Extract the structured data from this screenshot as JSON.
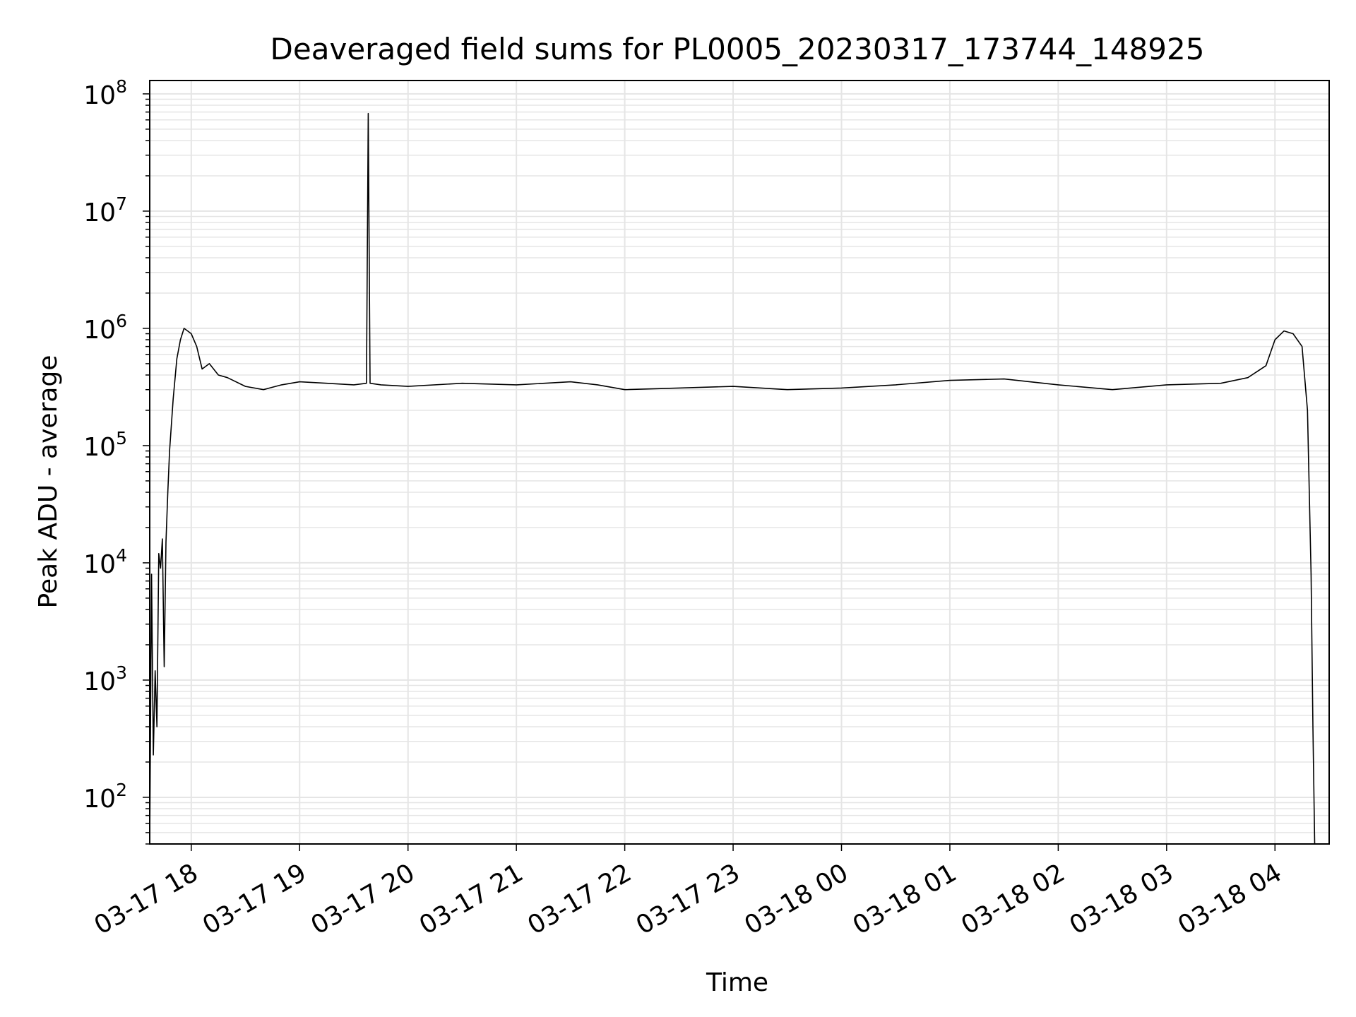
{
  "chart_data": {
    "type": "line",
    "title": "Deaveraged field sums for PL0005_20230317_173744_148925",
    "xlabel": "Time",
    "ylabel": "Peak ADU - average",
    "yscale": "log",
    "ylim": [
      40,
      130000000
    ],
    "xlim": [
      "2023-03-17 17:37",
      "2023-03-18 04:30"
    ],
    "grid": true,
    "line_color": "#000000",
    "grid_color": "#e5e5e5",
    "x_ticks": [
      {
        "t": "2023-03-17 18:00",
        "label": "03-17 18"
      },
      {
        "t": "2023-03-17 19:00",
        "label": "03-17 19"
      },
      {
        "t": "2023-03-17 20:00",
        "label": "03-17 20"
      },
      {
        "t": "2023-03-17 21:00",
        "label": "03-17 21"
      },
      {
        "t": "2023-03-17 22:00",
        "label": "03-17 22"
      },
      {
        "t": "2023-03-17 23:00",
        "label": "03-17 23"
      },
      {
        "t": "2023-03-18 00:00",
        "label": "03-18 00"
      },
      {
        "t": "2023-03-18 01:00",
        "label": "03-18 01"
      },
      {
        "t": "2023-03-18 02:00",
        "label": "03-18 02"
      },
      {
        "t": "2023-03-18 03:00",
        "label": "03-18 03"
      },
      {
        "t": "2023-03-18 04:00",
        "label": "03-18 04"
      }
    ],
    "y_ticks": [
      {
        "value": 100,
        "base": "10",
        "exp": "2"
      },
      {
        "value": 1000,
        "base": "10",
        "exp": "3"
      },
      {
        "value": 10000,
        "base": "10",
        "exp": "4"
      },
      {
        "value": 100000,
        "base": "10",
        "exp": "5"
      },
      {
        "value": 1000000,
        "base": "10",
        "exp": "6"
      },
      {
        "value": 10000000,
        "base": "10",
        "exp": "7"
      },
      {
        "value": 100000000,
        "base": "10",
        "exp": "8"
      }
    ],
    "series": [
      {
        "x": [
          "2023-03-17 17:37",
          "2023-03-17 17:38",
          "2023-03-17 17:39",
          "2023-03-17 17:40",
          "2023-03-17 17:41",
          "2023-03-17 17:42",
          "2023-03-17 17:43",
          "2023-03-17 17:44",
          "2023-03-17 17:45",
          "2023-03-17 17:46",
          "2023-03-17 17:47",
          "2023-03-17 17:48",
          "2023-03-17 17:50",
          "2023-03-17 17:52",
          "2023-03-17 17:54",
          "2023-03-17 17:56",
          "2023-03-17 17:58",
          "2023-03-17 18:00",
          "2023-03-17 18:03",
          "2023-03-17 18:06",
          "2023-03-17 18:10",
          "2023-03-17 18:15",
          "2023-03-17 18:20",
          "2023-03-17 18:30",
          "2023-03-17 18:40",
          "2023-03-17 18:50",
          "2023-03-17 19:00",
          "2023-03-17 19:15",
          "2023-03-17 19:30",
          "2023-03-17 19:37",
          "2023-03-17 19:38",
          "2023-03-17 19:39",
          "2023-03-17 19:45",
          "2023-03-17 20:00",
          "2023-03-17 20:30",
          "2023-03-17 21:00",
          "2023-03-17 21:30",
          "2023-03-17 21:45",
          "2023-03-17 22:00",
          "2023-03-17 22:30",
          "2023-03-17 23:00",
          "2023-03-17 23:30",
          "2023-03-18 00:00",
          "2023-03-18 00:30",
          "2023-03-18 01:00",
          "2023-03-18 01:30",
          "2023-03-18 02:00",
          "2023-03-18 02:30",
          "2023-03-18 03:00",
          "2023-03-18 03:30",
          "2023-03-18 03:45",
          "2023-03-18 03:55",
          "2023-03-18 04:00",
          "2023-03-18 04:05",
          "2023-03-18 04:10",
          "2023-03-18 04:15",
          "2023-03-18 04:18",
          "2023-03-18 04:20",
          "2023-03-18 04:21",
          "2023-03-18 04:22"
        ],
        "y": [
          40,
          8000,
          230,
          1200,
          400,
          12000,
          9000,
          16000,
          1300,
          15000,
          40000,
          90000,
          250000,
          550000,
          800000,
          1000000,
          950000,
          900000,
          700000,
          450000,
          500000,
          400000,
          380000,
          320000,
          300000,
          330000,
          350000,
          340000,
          330000,
          340000,
          68000000,
          340000,
          330000,
          320000,
          340000,
          330000,
          350000,
          330000,
          300000,
          310000,
          320000,
          300000,
          310000,
          330000,
          360000,
          370000,
          330000,
          300000,
          330000,
          340000,
          380000,
          480000,
          800000,
          950000,
          900000,
          700000,
          200000,
          8000,
          400,
          40
        ]
      }
    ]
  }
}
